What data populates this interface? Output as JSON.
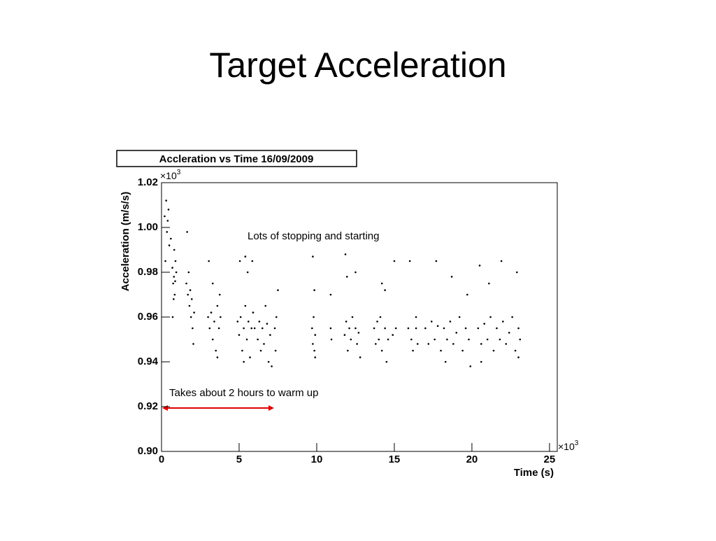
{
  "slide_title": "Target Acceleration",
  "chart_data": {
    "type": "scatter",
    "title": "Accleration vs Time 16/09/2009",
    "x_label": "Time (s)",
    "y_label": "Acceleration (m/s/s)",
    "x_multiplier": "×10",
    "x_multiplier_exponent": "3",
    "y_multiplier": "×10",
    "y_multiplier_exponent": "3",
    "annotations": [
      "Lots of stopping and starting",
      "Takes about 2 hours to warm up"
    ],
    "color": "#000000",
    "xlim": [
      0,
      25.5
    ],
    "ylim": [
      0.9,
      1.02
    ],
    "xticks": [
      0,
      5,
      10,
      15,
      20,
      25
    ],
    "yticks": [
      {
        "value": 0.9,
        "label": "0.90"
      },
      0.92,
      0.94,
      0.96,
      0.98,
      {
        "value": 1.0,
        "label": "1.00"
      },
      1.02
    ],
    "x": [
      0.2,
      0.3,
      0.35,
      0.4,
      0.5,
      0.45,
      0.6,
      0.25,
      0.7,
      0.75,
      0.8,
      0.85,
      0.9,
      0.78,
      0.88,
      0.82,
      0.72,
      0.95,
      1.6,
      1.7,
      1.75,
      1.8,
      1.85,
      1.9,
      1.65,
      1.95,
      2.0,
      2.05,
      2.1,
      3.0,
      3.1,
      3.2,
      3.3,
      3.4,
      3.5,
      3.6,
      3.7,
      3.8,
      3.05,
      3.3,
      3.6,
      3.75,
      4.9,
      5.0,
      5.1,
      5.2,
      5.3,
      5.4,
      5.5,
      5.6,
      5.7,
      5.8,
      5.9,
      5.05,
      5.4,
      5.55,
      5.85,
      5.3,
      6.0,
      6.2,
      6.3,
      6.4,
      6.5,
      6.6,
      6.8,
      6.9,
      7.0,
      7.1,
      7.3,
      7.4,
      6.7,
      7.5,
      7.35,
      9.7,
      9.75,
      9.8,
      9.85,
      9.9,
      9.75,
      9.85,
      9.9,
      10.9,
      10.95,
      10.9,
      11.8,
      11.9,
      12.0,
      12.1,
      12.2,
      12.3,
      12.5,
      12.6,
      12.7,
      11.85,
      11.95,
      12.5,
      12.8,
      13.7,
      13.8,
      13.9,
      14.0,
      14.1,
      14.2,
      14.4,
      14.6,
      14.9,
      15.1,
      14.2,
      14.4,
      15.0,
      14.5,
      15.9,
      16.1,
      16.2,
      16.4,
      16.5,
      16.0,
      16.4,
      17.0,
      17.2,
      17.4,
      17.6,
      17.8,
      18.0,
      18.2,
      18.4,
      18.6,
      18.8,
      19.0,
      19.2,
      19.4,
      19.6,
      19.8,
      17.7,
      18.7,
      19.7,
      18.3,
      19.9,
      20.4,
      20.6,
      20.8,
      21.0,
      21.2,
      21.4,
      21.6,
      21.8,
      22.0,
      22.2,
      22.4,
      22.6,
      22.8,
      23.0,
      23.1,
      20.5,
      21.1,
      21.9,
      22.9,
      20.6,
      23.0
    ],
    "values": [
      1.005,
      1.012,
      0.998,
      1.003,
      0.992,
      1.008,
      0.995,
      0.985,
      0.982,
      0.975,
      0.978,
      0.97,
      0.985,
      0.968,
      0.976,
      0.99,
      0.96,
      0.98,
      0.975,
      0.97,
      0.98,
      0.965,
      0.972,
      0.96,
      0.998,
      0.968,
      0.955,
      0.948,
      0.962,
      0.96,
      0.955,
      0.962,
      0.95,
      0.958,
      0.945,
      0.965,
      0.955,
      0.96,
      0.985,
      0.975,
      0.942,
      0.97,
      0.958,
      0.952,
      0.96,
      0.945,
      0.955,
      0.965,
      0.95,
      0.958,
      0.942,
      0.955,
      0.962,
      0.985,
      0.987,
      0.98,
      0.985,
      0.94,
      0.955,
      0.95,
      0.958,
      0.945,
      0.955,
      0.948,
      0.957,
      0.94,
      0.952,
      0.938,
      0.955,
      0.96,
      0.965,
      0.972,
      0.945,
      0.955,
      0.948,
      0.96,
      0.945,
      0.952,
      0.987,
      0.972,
      0.942,
      0.955,
      0.95,
      0.97,
      0.952,
      0.958,
      0.945,
      0.955,
      0.95,
      0.96,
      0.955,
      0.948,
      0.953,
      0.988,
      0.978,
      0.98,
      0.942,
      0.955,
      0.948,
      0.958,
      0.95,
      0.96,
      0.945,
      0.955,
      0.95,
      0.952,
      0.955,
      0.975,
      0.972,
      0.985,
      0.94,
      0.955,
      0.95,
      0.945,
      0.955,
      0.948,
      0.985,
      0.96,
      0.955,
      0.948,
      0.958,
      0.95,
      0.956,
      0.945,
      0.955,
      0.95,
      0.958,
      0.948,
      0.953,
      0.96,
      0.945,
      0.955,
      0.95,
      0.985,
      0.978,
      0.97,
      0.94,
      0.938,
      0.955,
      0.948,
      0.957,
      0.95,
      0.96,
      0.945,
      0.955,
      0.95,
      0.958,
      0.948,
      0.953,
      0.96,
      0.945,
      0.955,
      0.95,
      0.983,
      0.975,
      0.985,
      0.98,
      0.94,
      0.942
    ]
  }
}
